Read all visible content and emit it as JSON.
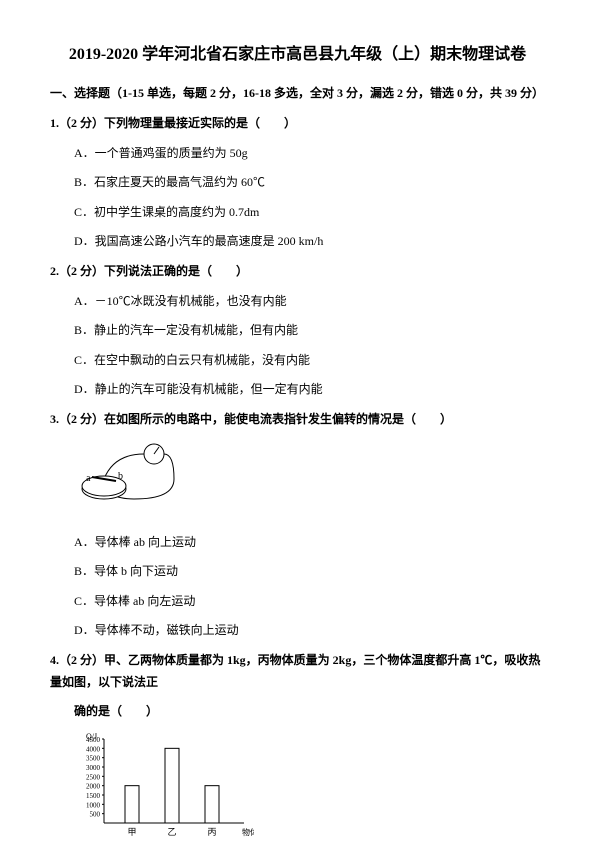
{
  "title": "2019-2020 学年河北省石家庄市高邑县九年级（上）期末物理试卷",
  "section": "一、选择题（1-15 单选，每题 2 分，16-18 多选，全对 3 分，漏选 2 分，错选 0 分，共 39 分）",
  "q1": {
    "stem": "1.（2 分）下列物理量最接近实际的是（　　）",
    "A": "A．一个普通鸡蛋的质量约为 50g",
    "B": "B．石家庄夏天的最高气温约为 60℃",
    "C": "C．初中学生课桌的高度约为 0.7dm",
    "D": "D．我国高速公路小汽车的最高速度是 200 km/h"
  },
  "q2": {
    "stem": "2.（2 分）下列说法正确的是（　　）",
    "A": "A．－10℃冰既没有机械能，也没有内能",
    "B": "B．静止的汽车一定没有机械能，但有内能",
    "C": "C．在空中飘动的白云只有机械能，没有内能",
    "D": "D．静止的汽车可能没有机械能，但一定有内能"
  },
  "q3": {
    "stem": "3.（2 分）在如图所示的电路中，能使电流表指针发生偏转的情况是（　　）",
    "A": "A．导体棒 ab 向上运动",
    "B": "B．导体 b 向下运动",
    "C": "C．导体棒 ab 向左运动",
    "D": "D．导体棒不动，磁铁向上运动",
    "diagram": {
      "label_a": "a",
      "label_b": "b",
      "colors": {
        "stroke": "#000000",
        "fill": "#ffffff",
        "bg": "#ffffff"
      },
      "stroke_width": 1
    }
  },
  "q4": {
    "stem": "4.（2 分）甲、乙两物体质量都为 1kg，丙物体质量为 2kg，三个物体温度都升高 1℃，吸收热量如图，以下说法正",
    "stem2": "确的是（　　）",
    "chart": {
      "type": "bar",
      "categories": [
        "甲",
        "乙",
        "丙"
      ],
      "values": [
        2000,
        4000,
        2000
      ],
      "ytitle": "Q/J",
      "xtitle": "物体",
      "ylim": [
        0,
        4500
      ],
      "yticks": [
        500,
        1000,
        1500,
        2000,
        2500,
        3000,
        3500,
        4000,
        4500
      ],
      "bar_color": "#ffffff",
      "bar_border": "#000000",
      "axis_color": "#000000",
      "text_color": "#000000",
      "font_size": 8,
      "bar_width": 0.35
    }
  }
}
